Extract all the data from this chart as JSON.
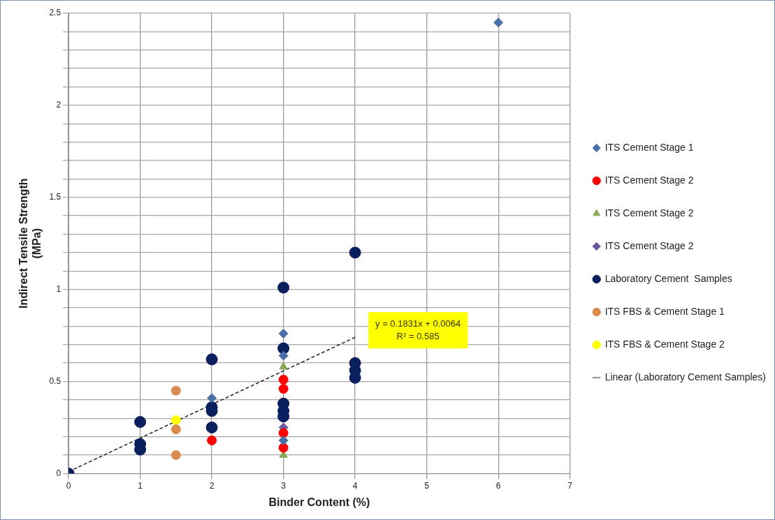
{
  "chart_data": {
    "type": "scatter",
    "xlabel": "Binder Content (%)",
    "ylabel": "Indirect Tensile Strength\n(MPa)",
    "xlim": [
      0,
      7
    ],
    "xticks": [
      0,
      1,
      2,
      3,
      4,
      5,
      6,
      7
    ],
    "ylim": [
      0,
      2.5
    ],
    "yticks": [
      0,
      {
        "value": 0.1,
        "label": null
      },
      {
        "value": 0.2,
        "label": null
      },
      {
        "value": 0.3,
        "label": null
      },
      {
        "value": 0.4,
        "label": null
      },
      0.5,
      {
        "value": 0.6,
        "label": null
      },
      {
        "value": 0.7,
        "label": null
      },
      {
        "value": 0.8,
        "label": null
      },
      {
        "value": 0.9,
        "label": null
      },
      1,
      {
        "value": 1.1,
        "label": null
      },
      {
        "value": 1.2,
        "label": null
      },
      {
        "value": 1.3,
        "label": null
      },
      {
        "value": 1.4,
        "label": null
      },
      1.5,
      {
        "value": 1.6,
        "label": null
      },
      {
        "value": 1.7,
        "label": null
      },
      {
        "value": 1.8,
        "label": null
      },
      {
        "value": 1.9,
        "label": null
      },
      2,
      {
        "value": 2.1,
        "label": null
      },
      {
        "value": 2.2,
        "label": null
      },
      {
        "value": 2.3,
        "label": null
      },
      {
        "value": 2.4,
        "label": null
      },
      2.5
    ],
    "grid": true,
    "legend": "right",
    "series": [
      {
        "name": "ITS Cement Stage 1",
        "color": "#4a6fa8",
        "marker": "diamond",
        "x": [
          2,
          3,
          3,
          3,
          6
        ],
        "values": [
          0.41,
          0.76,
          0.64,
          0.18,
          2.45
        ]
      },
      {
        "name": "ITS Cement Stage 2",
        "color": "#ff0000",
        "marker": "circle",
        "x": [
          2,
          3,
          3,
          3,
          3
        ],
        "values": [
          0.18,
          0.51,
          0.46,
          0.22,
          0.14
        ]
      },
      {
        "name": "ITS Cement Stage 2",
        "color": "#8aa852",
        "marker": "triangle",
        "x": [
          3,
          3
        ],
        "values": [
          0.58,
          0.1
        ]
      },
      {
        "name": "ITS Cement Stage 2",
        "color": "#6a5a9c",
        "marker": "diamond",
        "x": [
          3
        ],
        "values": [
          0.25
        ]
      },
      {
        "name": "Laboratory Cement  Samples",
        "color": "#0b1f5e",
        "marker": "circle",
        "x": [
          0,
          1,
          1,
          1,
          2,
          2,
          2,
          2,
          3,
          3,
          3,
          3,
          3,
          4,
          4,
          4,
          4
        ],
        "values": [
          0,
          0.28,
          0.16,
          0.13,
          0.62,
          0.36,
          0.34,
          0.25,
          1.01,
          0.68,
          0.38,
          0.34,
          0.31,
          1.2,
          0.6,
          0.56,
          0.52
        ]
      },
      {
        "name": "ITS FBS & Cement Stage 1",
        "color": "#d98a4e",
        "marker": "circle",
        "x": [
          1.5,
          1.5,
          1.5
        ],
        "values": [
          0.45,
          0.24,
          0.1
        ]
      },
      {
        "name": "ITS FBS & Cement Stage 2",
        "color": "#ffff00",
        "marker": "circle",
        "x": [
          1.5
        ],
        "values": [
          0.29
        ]
      },
      {
        "name": "Linear (Laboratory Cement Samples)",
        "type": "line",
        "color": "#222222",
        "marker": "none",
        "line_style": "dashed",
        "x": [
          0,
          4
        ],
        "values": [
          0.01,
          0.74
        ]
      }
    ],
    "annotations": [
      "y = 0.1831x + 0.0064\nR² = 0.585"
    ]
  }
}
